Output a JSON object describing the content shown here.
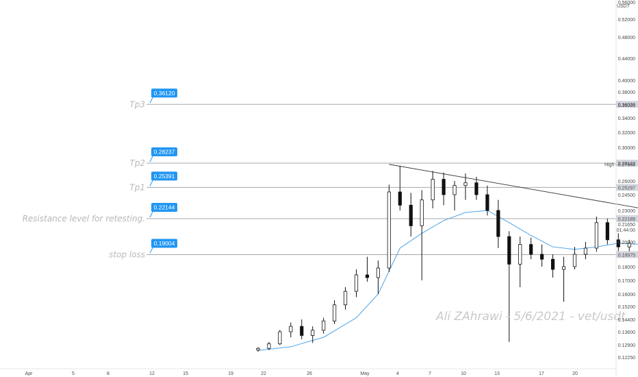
{
  "chart_data": {
    "type": "candlestick",
    "currency": "USDT",
    "price_axis": {
      "ticks": [
        "0.56000",
        "0.52000",
        "0.48000",
        "0.44000",
        "0.40000",
        "0.38000",
        "0.36000",
        "0.34000",
        "0.32000",
        "0.30000",
        "0.26000",
        "0.24500",
        "0.23000",
        "0.21650",
        "0.20000",
        "0.18000",
        "0.17000",
        "0.16000",
        "0.15200",
        "0.14400",
        "0.13600",
        "0.12900",
        "0.12250"
      ],
      "countdown": "01:44:00"
    },
    "x_axis": {
      "ticks": [
        "Apr",
        "5",
        "8",
        "12",
        "15",
        "19",
        "22",
        "26",
        "May",
        "4",
        "7",
        "10",
        "13",
        "17",
        "20"
      ]
    },
    "levels": [
      {
        "name": "Tp3",
        "tag": "0.36120",
        "axis_badge": "0.36078",
        "value": 0.36078
      },
      {
        "name": "Tp2",
        "tag": "0.28237",
        "axis_badge": "0.28122",
        "value": 0.28122
      },
      {
        "name": "Tp1",
        "tag": "0.25391",
        "axis_badge": "0.25297",
        "value": 0.25297
      },
      {
        "name": "Resistance level for retesting.",
        "tag": "0.22144",
        "axis_badge": "0.22189",
        "value": 0.22189
      },
      {
        "name": "stop loss",
        "tag": "0.19004",
        "axis_badge": "0.18975",
        "value": 0.18975
      }
    ],
    "high_marker": {
      "label": "High",
      "value": "0.27983"
    },
    "last_price": "0.21650",
    "candles": [
      [
        21,
        0.1262,
        0.1278,
        0.1253,
        0.1271
      ],
      [
        22,
        0.1271,
        0.1305,
        0.1262,
        0.1295
      ],
      [
        23,
        0.1295,
        0.1372,
        0.1288,
        0.136
      ],
      [
        24,
        0.136,
        0.142,
        0.133,
        0.1395
      ],
      [
        25,
        0.1395,
        0.144,
        0.132,
        0.134
      ],
      [
        26,
        0.134,
        0.1395,
        0.13,
        0.137
      ],
      [
        27,
        0.137,
        0.145,
        0.135,
        0.143
      ],
      [
        28,
        0.143,
        0.156,
        0.141,
        0.153
      ],
      [
        29,
        0.153,
        0.165,
        0.15,
        0.162
      ],
      [
        30,
        0.162,
        0.178,
        0.158,
        0.174
      ],
      [
        31,
        0.174,
        0.188,
        0.169,
        0.172
      ],
      [
        32,
        0.172,
        0.185,
        0.16,
        0.179
      ],
      [
        33,
        0.179,
        0.256,
        0.176,
        0.248
      ],
      [
        34,
        0.248,
        0.278,
        0.23,
        0.235
      ],
      [
        35,
        0.235,
        0.247,
        0.205,
        0.215
      ],
      [
        36,
        0.215,
        0.25,
        0.17,
        0.24
      ],
      [
        37,
        0.24,
        0.272,
        0.232,
        0.262
      ],
      [
        38,
        0.262,
        0.27,
        0.235,
        0.245
      ],
      [
        39,
        0.245,
        0.26,
        0.23,
        0.255
      ],
      [
        40,
        0.255,
        0.269,
        0.24,
        0.258
      ],
      [
        41,
        0.258,
        0.265,
        0.24,
        0.245
      ],
      [
        42,
        0.245,
        0.255,
        0.225,
        0.23
      ],
      [
        43,
        0.23,
        0.24,
        0.195,
        0.205
      ],
      [
        44,
        0.205,
        0.21,
        0.1305,
        0.182
      ],
      [
        45,
        0.182,
        0.205,
        0.165,
        0.198
      ],
      [
        46,
        0.198,
        0.204,
        0.186,
        0.19
      ],
      [
        47,
        0.19,
        0.198,
        0.18,
        0.186
      ],
      [
        48,
        0.186,
        0.19,
        0.172,
        0.178
      ],
      [
        49,
        0.178,
        0.188,
        0.155,
        0.18
      ],
      [
        50,
        0.18,
        0.196,
        0.178,
        0.19
      ],
      [
        51,
        0.19,
        0.2,
        0.186,
        0.195
      ],
      [
        52,
        0.195,
        0.224,
        0.192,
        0.218
      ],
      [
        53,
        0.218,
        0.222,
        0.198,
        0.202
      ],
      [
        54,
        0.202,
        0.208,
        0.19,
        0.196
      ],
      [
        55,
        0.196,
        0.202,
        0.19,
        0.199
      ],
      [
        56,
        0.199,
        0.202,
        0.188,
        0.192
      ],
      [
        57,
        0.192,
        0.198,
        0.185,
        0.196
      ],
      [
        58,
        0.196,
        0.206,
        0.194,
        0.203
      ],
      [
        59,
        0.203,
        0.208,
        0.195,
        0.199
      ],
      [
        60,
        0.199,
        0.21,
        0.197,
        0.208
      ],
      [
        61,
        0.208,
        0.22,
        0.206,
        0.219
      ],
      [
        62,
        0.219,
        0.225,
        0.212,
        0.214
      ],
      [
        63,
        0.214,
        0.218,
        0.202,
        0.206
      ],
      [
        64,
        0.206,
        0.209,
        0.192,
        0.196
      ],
      [
        65,
        0.196,
        0.205,
        0.187,
        0.202
      ],
      [
        66,
        0.202,
        0.212,
        0.198,
        0.209
      ],
      [
        67,
        0.209,
        0.22,
        0.206,
        0.217
      ]
    ],
    "ema": [
      [
        21,
        0.126
      ],
      [
        24,
        0.128
      ],
      [
        27,
        0.133
      ],
      [
        30,
        0.145
      ],
      [
        32,
        0.16
      ],
      [
        34,
        0.195
      ],
      [
        36,
        0.208
      ],
      [
        38,
        0.22
      ],
      [
        40,
        0.228
      ],
      [
        42,
        0.23
      ],
      [
        44,
        0.218
      ],
      [
        46,
        0.206
      ],
      [
        48,
        0.196
      ],
      [
        50,
        0.194
      ],
      [
        52,
        0.196
      ],
      [
        54,
        0.199
      ],
      [
        56,
        0.198
      ],
      [
        58,
        0.199
      ],
      [
        60,
        0.202
      ],
      [
        62,
        0.207
      ],
      [
        64,
        0.203
      ],
      [
        66,
        0.201
      ],
      [
        67,
        0.204
      ]
    ],
    "trendline": [
      [
        33,
        0.2798
      ],
      [
        70,
        0.2065
      ]
    ],
    "arrow": [
      [
        65,
        0.184
      ],
      [
        68,
        0.2218
      ],
      [
        70,
        0.2145
      ],
      [
        74,
        0.26
      ]
    ],
    "watermark": "Ali ZAhrawi - 5/6/2021 - vet/usdt"
  }
}
